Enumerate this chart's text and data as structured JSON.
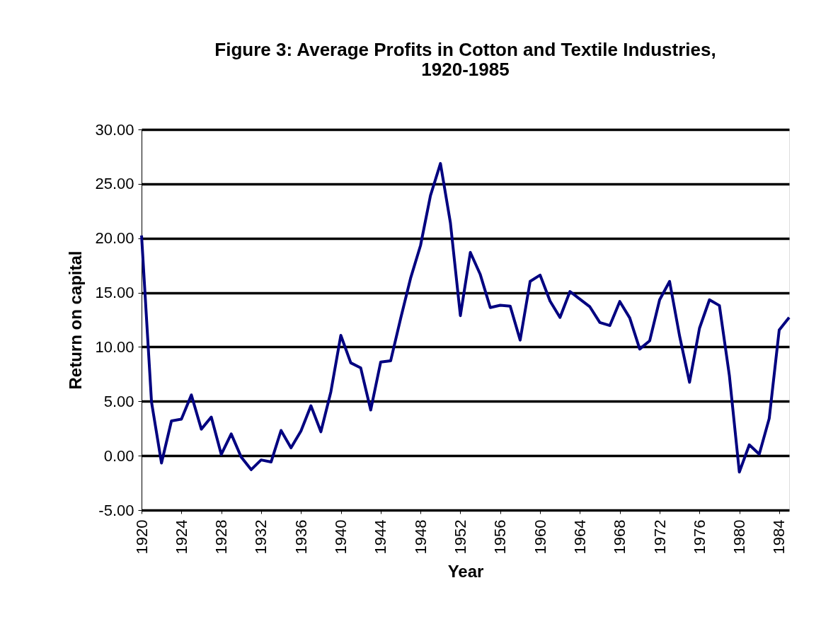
{
  "chart_data": {
    "type": "line",
    "title": [
      "Figure 3: Average Profits in Cotton and Textile Industries,",
      "1920-1985"
    ],
    "xlabel": "Year",
    "ylabel": "Return on capital",
    "x": [
      1920,
      1921,
      1922,
      1923,
      1924,
      1925,
      1926,
      1927,
      1928,
      1929,
      1930,
      1931,
      1932,
      1933,
      1934,
      1935,
      1936,
      1937,
      1938,
      1939,
      1940,
      1941,
      1942,
      1943,
      1944,
      1945,
      1946,
      1947,
      1948,
      1949,
      1950,
      1951,
      1952,
      1953,
      1954,
      1955,
      1956,
      1957,
      1958,
      1959,
      1960,
      1961,
      1962,
      1963,
      1964,
      1965,
      1966,
      1967,
      1968,
      1969,
      1970,
      1971,
      1972,
      1973,
      1974,
      1975,
      1976,
      1977,
      1978,
      1979,
      1980,
      1981,
      1982,
      1983,
      1984,
      1985
    ],
    "series": [
      {
        "color": "#000080",
        "values": [
          20.25,
          4.94,
          -0.67,
          3.2,
          3.36,
          5.59,
          2.44,
          3.55,
          0.12,
          2.0,
          -0.12,
          -1.28,
          -0.39,
          -0.58,
          2.32,
          0.72,
          2.27,
          4.59,
          2.2,
          5.87,
          11.07,
          8.54,
          8.07,
          4.2,
          8.61,
          8.72,
          12.6,
          16.31,
          19.33,
          23.92,
          26.87,
          21.42,
          12.88,
          18.7,
          16.66,
          13.62,
          13.83,
          13.76,
          10.63,
          16.03,
          16.61,
          14.22,
          12.71,
          15.1,
          14.39,
          13.69,
          12.25,
          11.97,
          14.18,
          12.67,
          9.81,
          10.56,
          14.34,
          16.03,
          11.02,
          6.75,
          11.72,
          14.34,
          13.81,
          7.38,
          -1.51,
          1.0,
          0.14,
          3.43,
          11.55,
          12.71
        ]
      }
    ],
    "xlim": [
      1920,
      1985
    ],
    "xticks": [
      1920,
      1924,
      1928,
      1932,
      1936,
      1940,
      1944,
      1948,
      1952,
      1956,
      1960,
      1964,
      1968,
      1972,
      1976,
      1980,
      1984
    ],
    "ylim": [
      -5,
      30
    ],
    "yticks": [
      {
        "value": -5,
        "label": "-5.00"
      },
      {
        "value": 0,
        "label": "0.00"
      },
      {
        "value": 5,
        "label": "5.00"
      },
      {
        "value": 10,
        "label": "10.00"
      },
      {
        "value": 15,
        "label": "15.00"
      },
      {
        "value": 20,
        "label": "20.00"
      },
      {
        "value": 25,
        "label": "25.00"
      },
      {
        "value": 30,
        "label": "30.00"
      }
    ],
    "grid": "y",
    "marker": "none",
    "line_style": "solid"
  }
}
